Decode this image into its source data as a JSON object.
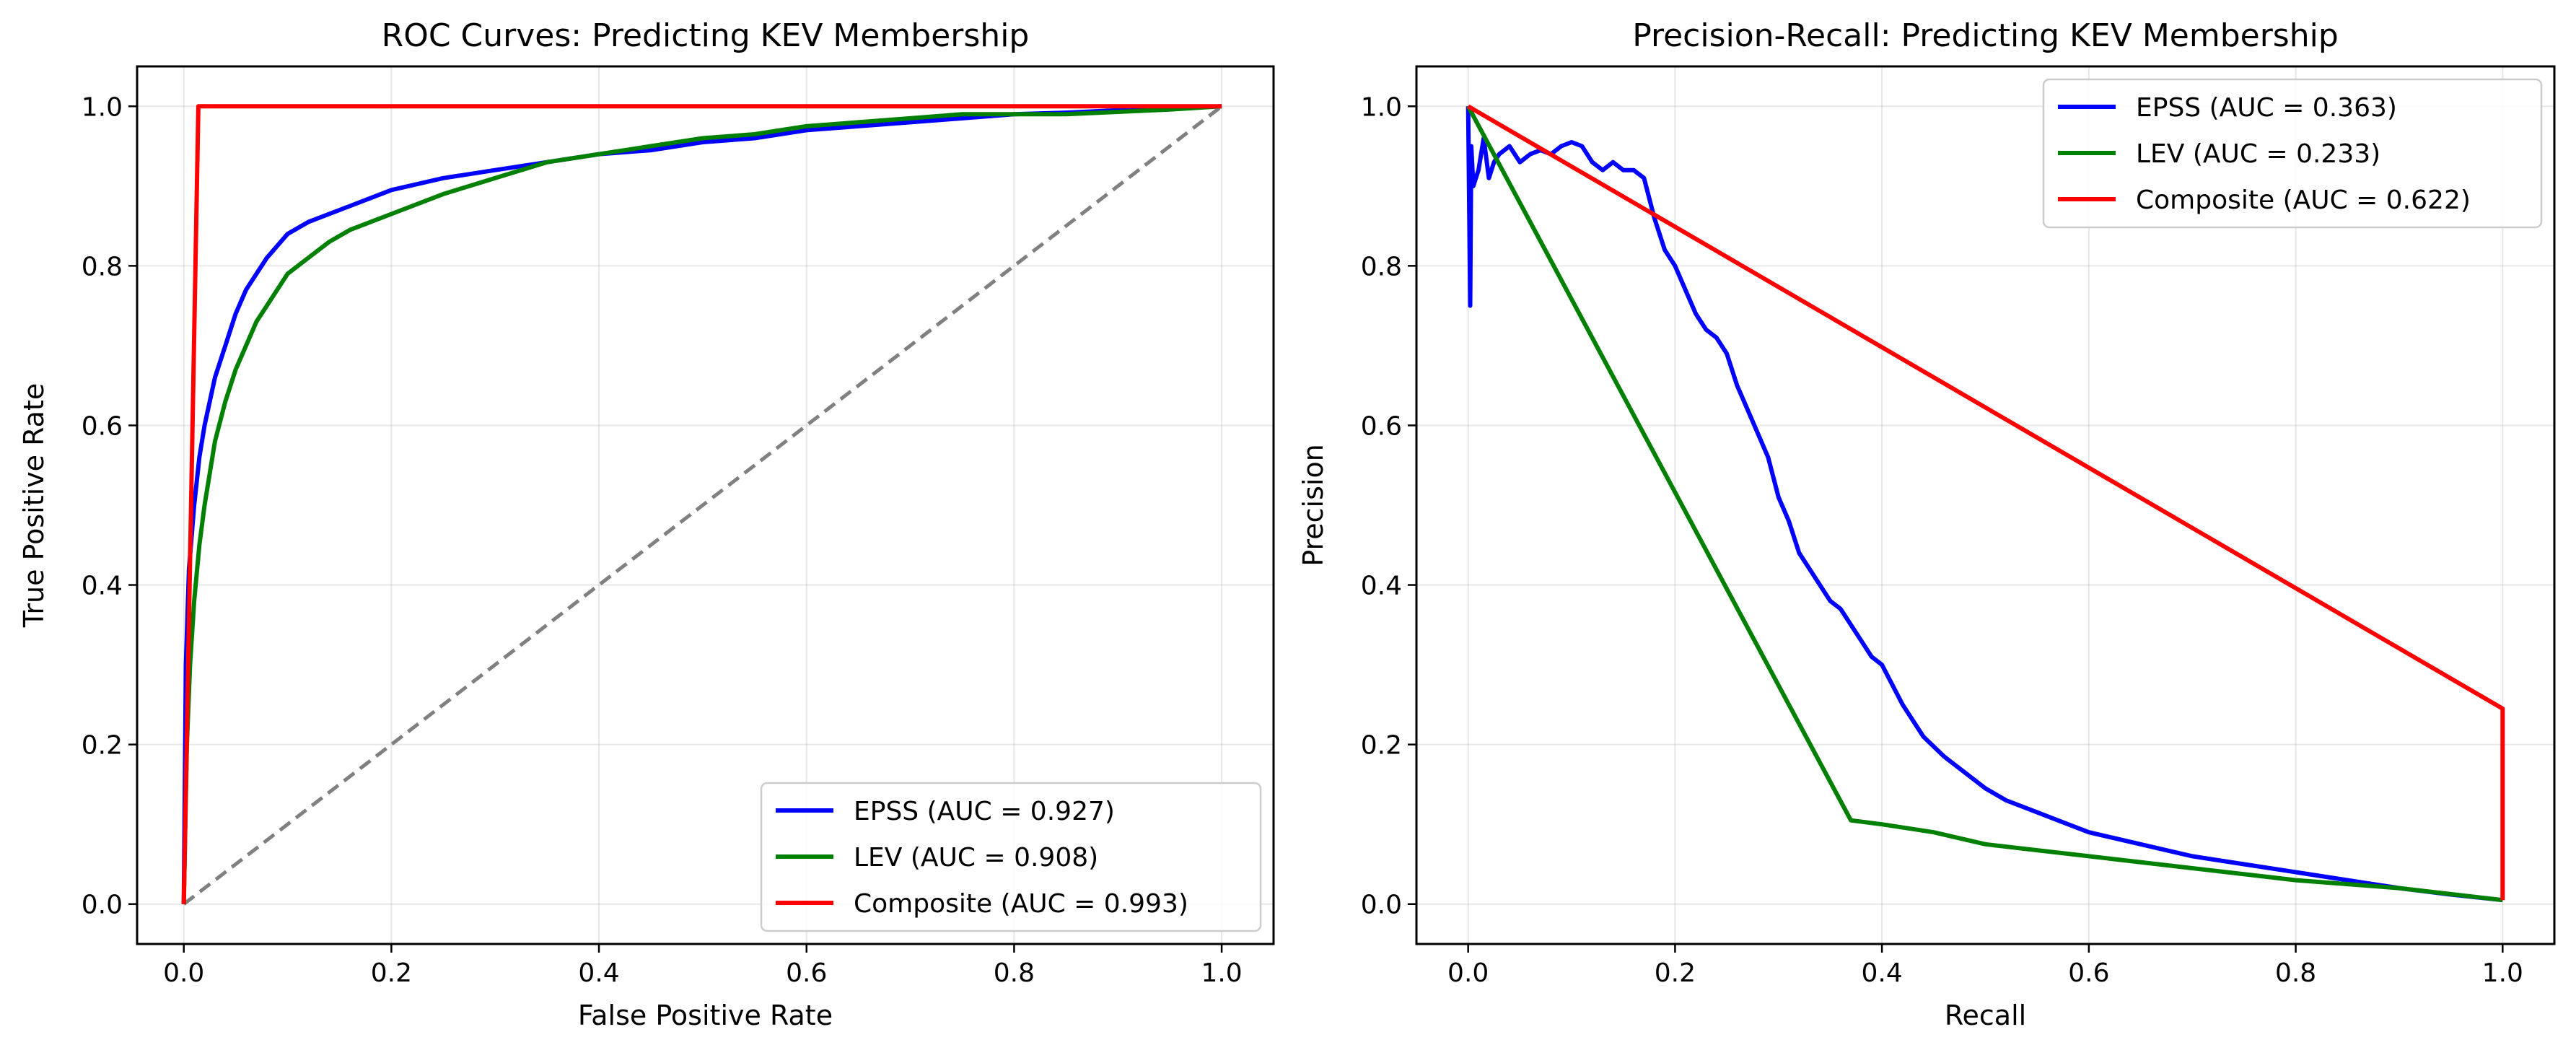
{
  "chart_data": [
    {
      "type": "line",
      "title": "ROC Curves: Predicting KEV Membership",
      "xlabel": "False Positive Rate",
      "ylabel": "True Positive Rate",
      "xlim": [
        -0.045,
        1.05
      ],
      "ylim": [
        -0.05,
        1.05
      ],
      "xticks": [
        "0.0",
        "0.2",
        "0.4",
        "0.6",
        "0.8",
        "1.0"
      ],
      "yticks": [
        "0.0",
        "0.2",
        "0.4",
        "0.6",
        "0.8",
        "1.0"
      ],
      "grid": true,
      "legend_position": "lower-right",
      "reference_line": {
        "style": "dashed",
        "color": "#808080",
        "x": [
          0,
          1
        ],
        "y": [
          0,
          1
        ]
      },
      "series": [
        {
          "name": "EPSS (AUC = 0.927)",
          "color": "#0000ff",
          "x": [
            0,
            0.002,
            0.005,
            0.01,
            0.015,
            0.02,
            0.03,
            0.04,
            0.05,
            0.06,
            0.07,
            0.08,
            0.09,
            0.1,
            0.12,
            0.14,
            0.16,
            0.18,
            0.2,
            0.25,
            0.3,
            0.35,
            0.4,
            0.45,
            0.5,
            0.55,
            0.6,
            0.65,
            0.7,
            0.75,
            0.8,
            0.85,
            0.9,
            0.95,
            1.0
          ],
          "y": [
            0,
            0.3,
            0.42,
            0.5,
            0.56,
            0.6,
            0.66,
            0.7,
            0.74,
            0.77,
            0.79,
            0.81,
            0.825,
            0.84,
            0.855,
            0.865,
            0.875,
            0.885,
            0.895,
            0.91,
            0.92,
            0.93,
            0.94,
            0.945,
            0.955,
            0.96,
            0.97,
            0.975,
            0.98,
            0.985,
            0.99,
            0.992,
            0.995,
            0.998,
            1.0
          ]
        },
        {
          "name": "LEV (AUC = 0.908)",
          "color": "#008000",
          "x": [
            0,
            0.003,
            0.006,
            0.01,
            0.015,
            0.02,
            0.025,
            0.03,
            0.04,
            0.05,
            0.06,
            0.07,
            0.08,
            0.09,
            0.1,
            0.12,
            0.14,
            0.16,
            0.18,
            0.2,
            0.25,
            0.3,
            0.35,
            0.4,
            0.45,
            0.5,
            0.55,
            0.6,
            0.65,
            0.7,
            0.75,
            0.8,
            0.85,
            0.9,
            0.95,
            1.0
          ],
          "y": [
            0,
            0.2,
            0.3,
            0.38,
            0.45,
            0.5,
            0.54,
            0.58,
            0.63,
            0.67,
            0.7,
            0.73,
            0.75,
            0.77,
            0.79,
            0.81,
            0.83,
            0.845,
            0.855,
            0.865,
            0.89,
            0.91,
            0.93,
            0.94,
            0.95,
            0.96,
            0.965,
            0.975,
            0.98,
            0.985,
            0.99,
            0.99,
            0.99,
            0.993,
            0.996,
            1.0
          ]
        },
        {
          "name": "Composite (AUC = 0.993)",
          "color": "#ff0000",
          "x": [
            0,
            0.014,
            1.0
          ],
          "y": [
            0,
            1.0,
            1.0
          ]
        }
      ]
    },
    {
      "type": "line",
      "title": "Precision-Recall: Predicting KEV Membership",
      "xlabel": "Recall",
      "ylabel": "Precision",
      "xlim": [
        -0.05,
        1.05
      ],
      "ylim": [
        -0.05,
        1.05
      ],
      "xticks": [
        "0.0",
        "0.2",
        "0.4",
        "0.6",
        "0.8",
        "1.0"
      ],
      "yticks": [
        "0.0",
        "0.2",
        "0.4",
        "0.6",
        "0.8",
        "1.0"
      ],
      "grid": true,
      "legend_position": "upper-right",
      "series": [
        {
          "name": "EPSS (AUC = 0.363)",
          "color": "#0000ff",
          "x": [
            0.0,
            0.002,
            0.003,
            0.005,
            0.01,
            0.015,
            0.02,
            0.025,
            0.03,
            0.04,
            0.05,
            0.06,
            0.07,
            0.08,
            0.09,
            0.1,
            0.11,
            0.12,
            0.13,
            0.14,
            0.15,
            0.16,
            0.17,
            0.18,
            0.19,
            0.2,
            0.21,
            0.22,
            0.23,
            0.24,
            0.25,
            0.26,
            0.27,
            0.28,
            0.29,
            0.3,
            0.31,
            0.32,
            0.33,
            0.34,
            0.35,
            0.36,
            0.37,
            0.38,
            0.39,
            0.4,
            0.42,
            0.44,
            0.46,
            0.48,
            0.5,
            0.52,
            0.55,
            0.58,
            0.6,
            0.65,
            0.7,
            0.75,
            0.8,
            0.85,
            0.9,
            0.95,
            1.0
          ],
          "y": [
            1.0,
            0.75,
            0.95,
            0.9,
            0.92,
            0.96,
            0.91,
            0.93,
            0.94,
            0.95,
            0.93,
            0.94,
            0.945,
            0.94,
            0.95,
            0.955,
            0.95,
            0.93,
            0.92,
            0.93,
            0.92,
            0.92,
            0.91,
            0.86,
            0.82,
            0.8,
            0.77,
            0.74,
            0.72,
            0.71,
            0.69,
            0.65,
            0.62,
            0.59,
            0.56,
            0.51,
            0.48,
            0.44,
            0.42,
            0.4,
            0.38,
            0.37,
            0.35,
            0.33,
            0.31,
            0.3,
            0.25,
            0.21,
            0.185,
            0.165,
            0.145,
            0.13,
            0.115,
            0.1,
            0.09,
            0.075,
            0.06,
            0.05,
            0.04,
            0.03,
            0.02,
            0.012,
            0.005
          ]
        },
        {
          "name": "LEV (AUC = 0.233)",
          "color": "#008000",
          "x": [
            0.0,
            0.37,
            0.4,
            0.45,
            0.5,
            0.6,
            0.7,
            0.8,
            0.9,
            1.0
          ],
          "y": [
            1.0,
            0.105,
            0.1,
            0.09,
            0.075,
            0.06,
            0.045,
            0.03,
            0.02,
            0.005
          ]
        },
        {
          "name": "Composite (AUC = 0.622)",
          "color": "#ff0000",
          "x": [
            0.0,
            1.0,
            1.0
          ],
          "y": [
            1.0,
            0.245,
            0.005
          ]
        }
      ]
    }
  ]
}
